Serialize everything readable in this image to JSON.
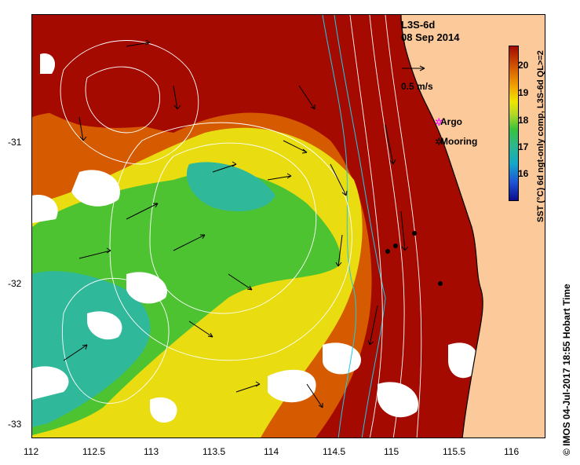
{
  "map": {
    "title": "L3S-6d",
    "date": "08 Sep 2014",
    "scale_label": "0.5 m/s",
    "legend": {
      "argo_label": "Argo",
      "mooring_label": "Mooring"
    },
    "colorbar": {
      "label": "SST (°C) 6d ngt-only comp, L3S-6d QL>=2",
      "ticks": [
        "20",
        "19",
        "18",
        "17",
        "16"
      ]
    },
    "credit": "© IMOS 04-Jul-2017 18:55 Hobart Time",
    "x_ticks": [
      "112",
      "112.5",
      "113",
      "113.5",
      "114",
      "114.5",
      "115",
      "115.5",
      "116"
    ],
    "y_ticks": [
      "-31",
      "-32",
      "-33"
    ],
    "colors": {
      "land": "#fcc99b",
      "warm": "#a40a00",
      "orange": "#d65a00",
      "yellow": "#e9dc10",
      "green": "#4ec332",
      "teal": "#2fb89a",
      "missing": "#ffffff"
    }
  }
}
